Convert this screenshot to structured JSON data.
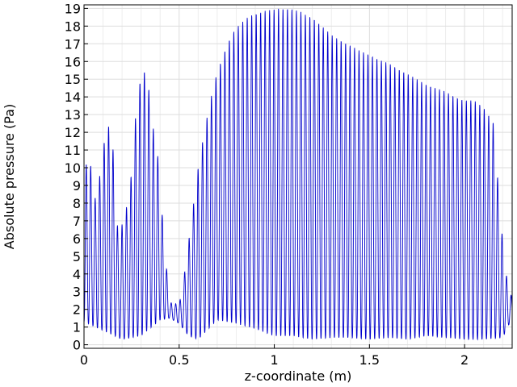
{
  "chart_data": {
    "type": "line",
    "title": "",
    "xlabel": "z-coordinate (m)",
    "ylabel": "Absolute pressure (Pa)",
    "xlim": [
      0,
      2.25
    ],
    "ylim": [
      -0.2,
      19.2
    ],
    "grid": true,
    "line_color": "#0000cc",
    "x_ticks": [
      0,
      0.5,
      1,
      1.5,
      2
    ],
    "x_tick_labels": [
      "0",
      "0.5",
      "1",
      "1.5",
      "2"
    ],
    "y_ticks": [
      0,
      1,
      2,
      3,
      4,
      5,
      6,
      7,
      8,
      9,
      10,
      11,
      12,
      13,
      14,
      15,
      16,
      17,
      18,
      19
    ],
    "y_tick_labels": [
      "0",
      "1",
      "2",
      "3",
      "4",
      "5",
      "6",
      "7",
      "8",
      "9",
      "10",
      "11",
      "12",
      "13",
      "14",
      "15",
      "16",
      "17",
      "18",
      "19"
    ],
    "oscillation_period_m": 0.0235,
    "series": [
      {
        "name": "",
        "envelope_peaks": {
          "x": [
            0.0,
            0.03,
            0.06,
            0.09,
            0.12,
            0.15,
            0.18,
            0.21,
            0.24,
            0.27,
            0.3,
            0.33,
            0.36,
            0.39,
            0.42,
            0.45,
            0.48,
            0.51,
            0.54,
            0.57,
            0.6,
            0.63,
            0.66,
            0.69,
            0.72,
            0.75,
            0.78,
            0.81,
            0.84,
            0.87,
            0.9,
            0.93,
            0.96,
            0.99,
            1.02,
            1.05,
            1.08,
            1.11,
            1.14,
            1.17,
            1.2,
            1.25,
            1.3,
            1.35,
            1.4,
            1.45,
            1.5,
            1.55,
            1.6,
            1.65,
            1.7,
            1.75,
            1.8,
            1.85,
            1.9,
            1.95,
            2.0,
            2.05,
            2.1,
            2.15,
            2.18,
            2.21,
            2.24
          ],
          "y": [
            10.0,
            10.5,
            8.2,
            10.0,
            12.7,
            11.5,
            6.0,
            7.2,
            8.5,
            12.8,
            15.3,
            15.5,
            12.5,
            10.5,
            6.0,
            2.4,
            2.3,
            2.6,
            5.0,
            7.5,
            10.0,
            11.9,
            13.6,
            15.0,
            16.0,
            16.9,
            17.6,
            18.0,
            18.3,
            18.6,
            18.7,
            18.8,
            18.9,
            18.9,
            19.0,
            19.0,
            19.0,
            18.9,
            18.8,
            18.6,
            18.5,
            18.0,
            17.5,
            17.2,
            16.9,
            16.6,
            16.4,
            16.1,
            15.9,
            15.6,
            15.3,
            15.0,
            14.7,
            14.5,
            14.3,
            14.0,
            13.8,
            13.8,
            13.4,
            12.6,
            8.6,
            4.5,
            2.8
          ]
        },
        "envelope_troughs": {
          "x": [
            0.0,
            0.1,
            0.2,
            0.3,
            0.4,
            0.45,
            0.5,
            0.55,
            0.6,
            0.7,
            0.8,
            0.9,
            1.0,
            1.1,
            1.2,
            1.3,
            1.4,
            1.5,
            1.6,
            1.7,
            1.8,
            1.9,
            2.0,
            2.1,
            2.2,
            2.24
          ],
          "y": [
            1.3,
            0.8,
            0.3,
            0.5,
            1.4,
            1.5,
            1.2,
            0.5,
            0.3,
            1.4,
            1.2,
            0.9,
            0.5,
            0.5,
            0.3,
            0.4,
            0.4,
            0.3,
            0.4,
            0.3,
            0.5,
            0.4,
            0.3,
            0.3,
            0.4,
            1.3
          ]
        }
      }
    ]
  }
}
